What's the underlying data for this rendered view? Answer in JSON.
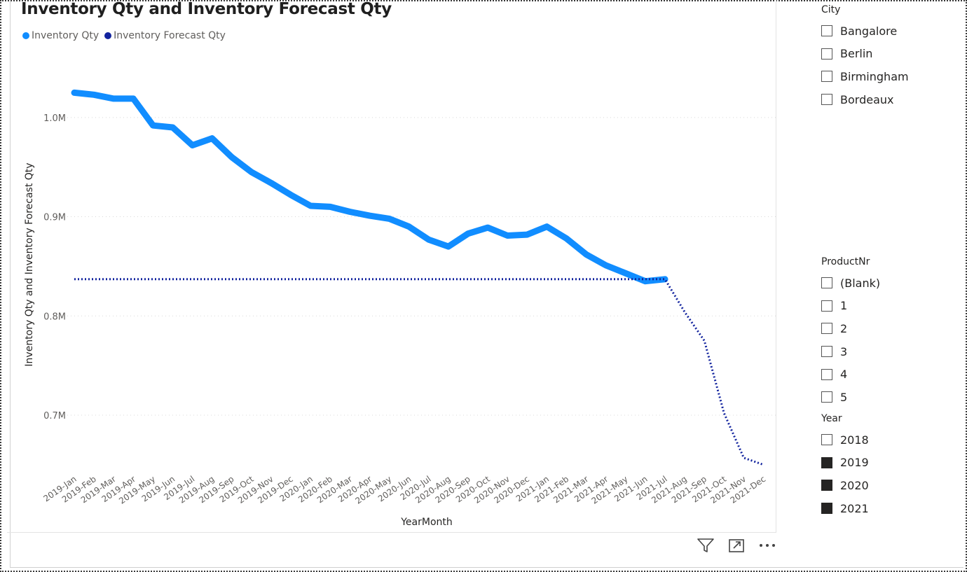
{
  "visual": {
    "title": "Inventory Qty and Inventory Forecast Qty",
    "legend": [
      {
        "label": "Inventory Qty",
        "color": "#118DFF"
      },
      {
        "label": "Inventory Forecast Qty",
        "color": "#12239E"
      }
    ],
    "icons": [
      "filter-icon",
      "focus-mode-icon",
      "more-options-icon"
    ]
  },
  "chart_data": {
    "type": "line",
    "title": "Inventory Qty and Inventory Forecast Qty",
    "xlabel": "YearMonth",
    "ylabel": "Inventory Qty and Inventory Forecast Qty",
    "ylim": [
      640000,
      1050000
    ],
    "yticks": [
      {
        "value": 700000,
        "label": "0.7M"
      },
      {
        "value": 800000,
        "label": "0.8M"
      },
      {
        "value": 900000,
        "label": "0.9M"
      },
      {
        "value": 1000000,
        "label": "1.0M"
      }
    ],
    "grid": true,
    "legend_position": "top-left",
    "categories": [
      "2019-Jan",
      "2019-Feb",
      "2019-Mar",
      "2019-Apr",
      "2019-May",
      "2019-Jun",
      "2019-Jul",
      "2019-Aug",
      "2019-Sep",
      "2019-Oct",
      "2019-Nov",
      "2019-Dec",
      "2020-Jan",
      "2020-Feb",
      "2020-Mar",
      "2020-Apr",
      "2020-May",
      "2020-Jun",
      "2020-Jul",
      "2020-Aug",
      "2020-Sep",
      "2020-Oct",
      "2020-Nov",
      "2020-Dec",
      "2021-Jan",
      "2021-Feb",
      "2021-Mar",
      "2021-Apr",
      "2021-May",
      "2021-Jun",
      "2021-Jul",
      "2021-Aug",
      "2021-Sep",
      "2021-Oct",
      "2021-Nov",
      "2021-Dec"
    ],
    "series": [
      {
        "name": "Inventory Qty",
        "color": "#118DFF",
        "style": "solid",
        "values": [
          1025000,
          1023000,
          1019000,
          1019000,
          992000,
          990000,
          972000,
          979000,
          960000,
          945000,
          934000,
          922000,
          911000,
          910000,
          905000,
          901000,
          898000,
          890000,
          877000,
          870000,
          883000,
          889000,
          881000,
          882000,
          890000,
          878000,
          862000,
          851000,
          843000,
          835000,
          837000,
          null,
          null,
          null,
          null,
          null
        ]
      },
      {
        "name": "Inventory Forecast Qty",
        "color": "#12239E",
        "style": "dotted",
        "values": [
          837000,
          837000,
          837000,
          837000,
          837000,
          837000,
          837000,
          837000,
          837000,
          837000,
          837000,
          837000,
          837000,
          837000,
          837000,
          837000,
          837000,
          837000,
          837000,
          837000,
          837000,
          837000,
          837000,
          837000,
          837000,
          837000,
          837000,
          837000,
          837000,
          837000,
          837000,
          804000,
          775000,
          702000,
          657000,
          650000
        ]
      }
    ]
  },
  "slicers": {
    "city": {
      "title": "City",
      "items": [
        {
          "label": "Bangalore",
          "checked": false
        },
        {
          "label": "Berlin",
          "checked": false
        },
        {
          "label": "Birmingham",
          "checked": false
        },
        {
          "label": "Bordeaux",
          "checked": false
        }
      ]
    },
    "product": {
      "title": "ProductNr",
      "items": [
        {
          "label": "(Blank)",
          "checked": false
        },
        {
          "label": "1",
          "checked": false
        },
        {
          "label": "2",
          "checked": false
        },
        {
          "label": "3",
          "checked": false
        },
        {
          "label": "4",
          "checked": false
        },
        {
          "label": "5",
          "checked": false
        }
      ]
    },
    "year": {
      "title": "Year",
      "items": [
        {
          "label": "2018",
          "checked": false
        },
        {
          "label": "2019",
          "checked": true
        },
        {
          "label": "2020",
          "checked": true
        },
        {
          "label": "2021",
          "checked": true
        }
      ]
    }
  }
}
